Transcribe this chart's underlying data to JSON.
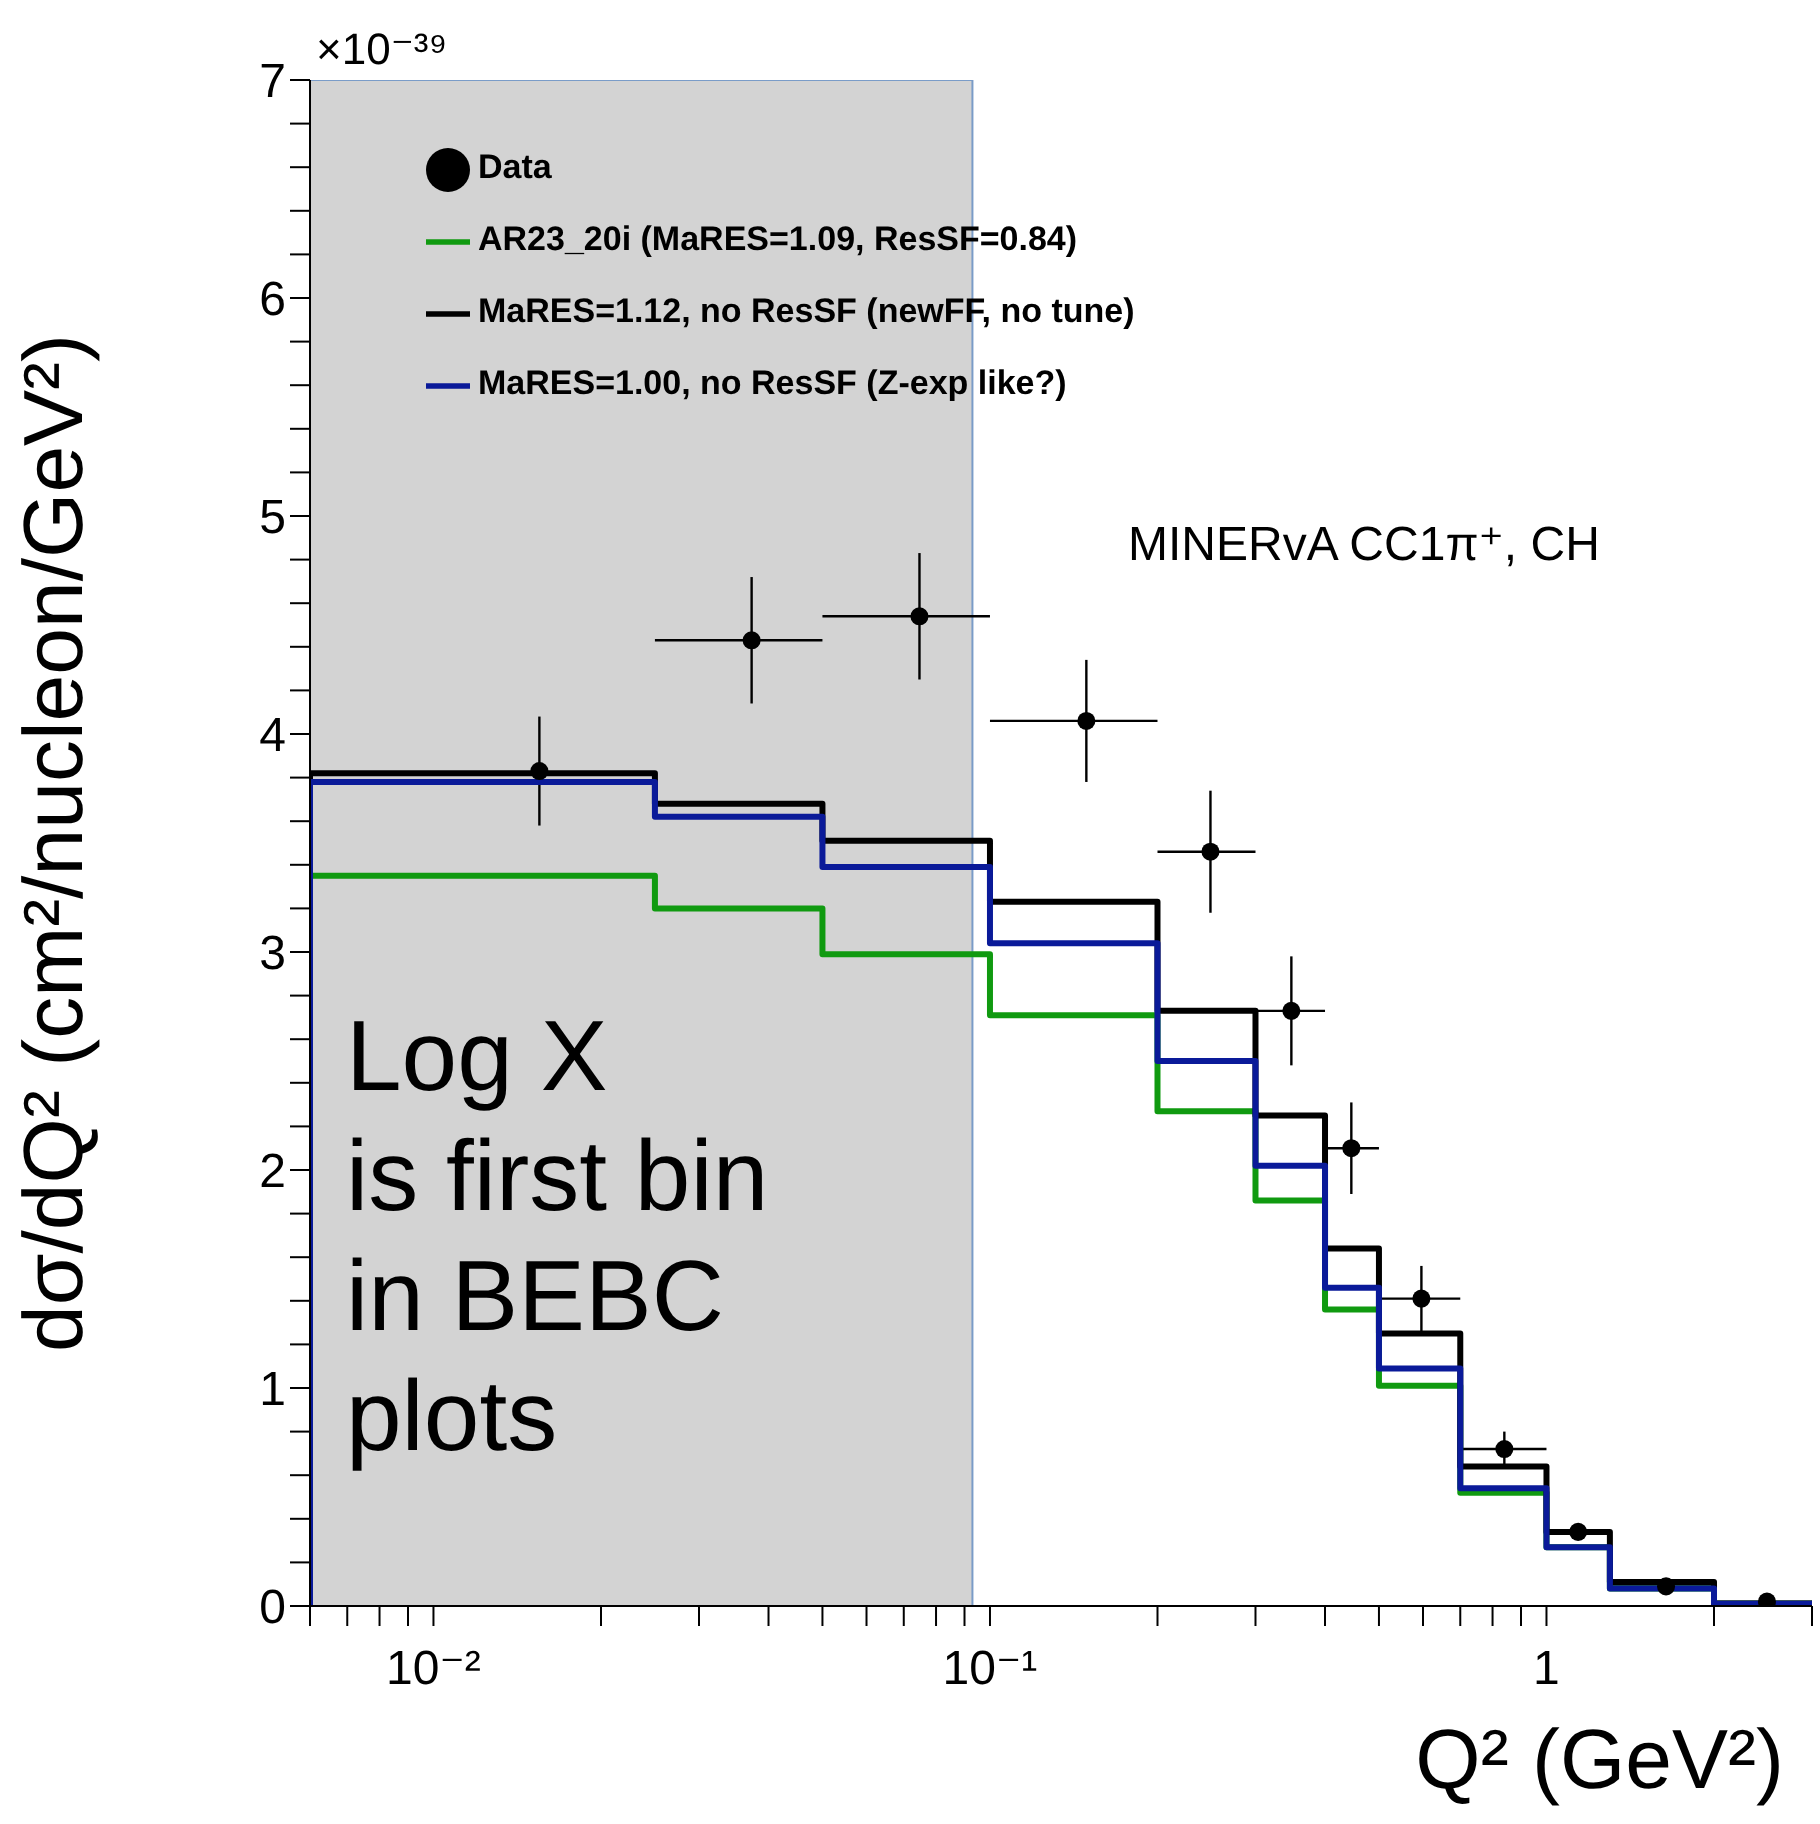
{
  "chart_data": {
    "type": "histogram",
    "xlabel": "Q² (GeV²)",
    "ylabel": "dσ/dQ² (cm²/nucleon/GeV²)",
    "annotations": [
      "×10⁻³⁹",
      "MINERvA CC1π⁺, CH"
    ],
    "bins": [
      0.006,
      0.025,
      0.05,
      0.1,
      0.2,
      0.3,
      0.4,
      0.5,
      0.7,
      1.0,
      1.3,
      2.0,
      3.0
    ],
    "series": [
      {
        "type": "scatter",
        "name": "Data",
        "color": "#000000",
        "x": [
          0.0155,
          0.0373,
          0.0747,
          0.149,
          0.249,
          0.348,
          0.446,
          0.596,
          0.84,
          1.14,
          1.64,
          2.49
        ],
        "values": [
          3.83,
          4.43,
          4.54,
          4.06,
          3.46,
          2.73,
          2.1,
          1.41,
          0.72,
          0.34,
          0.09,
          0.02
        ],
        "errors": [
          0.25,
          0.29,
          0.29,
          0.28,
          0.28,
          0.25,
          0.21,
          0.15,
          0.08,
          0.03,
          null,
          null
        ],
        "xerrors": [
          null,
          [
            0.025,
            0.05
          ],
          [
            0.05,
            0.1
          ],
          [
            0.1,
            0.2
          ],
          [
            0.2,
            0.3
          ],
          [
            0.3,
            0.4
          ],
          [
            0.4,
            0.5
          ],
          [
            0.5,
            0.7
          ],
          [
            0.7,
            1.0
          ],
          [
            1.0,
            1.3
          ],
          [
            1.3,
            2.0
          ],
          [
            2.0,
            3.0
          ]
        ]
      },
      {
        "name": "AR23_20i (MaRES=1.09, ResSF=0.84)",
        "color": "#109a10",
        "values": [
          3.35,
          3.2,
          2.99,
          2.71,
          2.27,
          1.86,
          1.36,
          1.01,
          0.52,
          0.27,
          0.08,
          0.01
        ]
      },
      {
        "name": "MaRES=1.12, no ResSF (newFF, no tune)",
        "color": "#000000",
        "values": [
          3.82,
          3.68,
          3.51,
          3.23,
          2.73,
          2.25,
          1.64,
          1.25,
          0.64,
          0.34,
          0.11,
          0.01
        ]
      },
      {
        "name": "MaRES=1.00, no ResSF (Z-exp like?)",
        "color": "#0a1a99",
        "values": [
          3.78,
          3.62,
          3.39,
          3.04,
          2.5,
          2.02,
          1.46,
          1.09,
          0.54,
          0.27,
          0.08,
          0.01
        ]
      }
    ],
    "log": "x",
    "xlim": [
      0.006,
      3
    ],
    "xticks": [
      {
        "value": 0.006,
        "label": null
      },
      {
        "value": 0.007,
        "label": null
      },
      {
        "value": 0.008,
        "label": null
      },
      {
        "value": 0.009,
        "label": null
      },
      {
        "value": 0.01,
        "label": "10⁻²"
      },
      {
        "value": 0.02,
        "label": null
      },
      {
        "value": 0.03,
        "label": null
      },
      {
        "value": 0.04,
        "label": null
      },
      {
        "value": 0.05,
        "label": null
      },
      {
        "value": 0.06,
        "label": null
      },
      {
        "value": 0.07,
        "label": null
      },
      {
        "value": 0.08,
        "label": null
      },
      {
        "value": 0.09,
        "label": null
      },
      {
        "value": 0.1,
        "label": "10⁻¹"
      },
      {
        "value": 0.2,
        "label": null
      },
      {
        "value": 0.3,
        "label": null
      },
      {
        "value": 0.4,
        "label": null
      },
      {
        "value": 0.5,
        "label": null
      },
      {
        "value": 0.6,
        "label": null
      },
      {
        "value": 0.7,
        "label": null
      },
      {
        "value": 0.8,
        "label": null
      },
      {
        "value": 0.9,
        "label": null
      },
      1,
      {
        "value": 2,
        "label": null
      },
      {
        "value": 3,
        "label": null
      }
    ],
    "ylim": [
      0,
      7
    ],
    "yticks": [
      0,
      {
        "value": 0.2,
        "label": null
      },
      {
        "value": 0.4,
        "label": null
      },
      {
        "value": 0.6,
        "label": null
      },
      {
        "value": 0.8,
        "label": null
      },
      1,
      {
        "value": 1.2,
        "label": null
      },
      {
        "value": 1.4,
        "label": null
      },
      {
        "value": 1.6,
        "label": null
      },
      {
        "value": 1.8,
        "label": null
      },
      2,
      {
        "value": 2.2,
        "label": null
      },
      {
        "value": 2.4,
        "label": null
      },
      {
        "value": 2.6,
        "label": null
      },
      {
        "value": 2.8,
        "label": null
      },
      3,
      {
        "value": 3.2,
        "label": null
      },
      {
        "value": 3.4,
        "label": null
      },
      {
        "value": 3.6,
        "label": null
      },
      {
        "value": 3.8,
        "label": null
      },
      4,
      {
        "value": 4.2,
        "label": null
      },
      {
        "value": 4.4,
        "label": null
      },
      {
        "value": 4.6,
        "label": null
      },
      {
        "value": 4.8,
        "label": null
      },
      5,
      {
        "value": 5.2,
        "label": null
      },
      {
        "value": 5.4,
        "label": null
      },
      {
        "value": 5.6,
        "label": null
      },
      {
        "value": 5.8,
        "label": null
      },
      6,
      {
        "value": 6.2,
        "label": null
      },
      {
        "value": 6.4,
        "label": null
      },
      {
        "value": 6.6,
        "label": null
      },
      {
        "value": 6.8,
        "label": null
      },
      7
    ],
    "bands": [
      {
        "axis": "x",
        "from": 0.006,
        "to": 0.093,
        "label": "Log X\nis first bin\nin BEBC\nplots",
        "color": "#d3d3d3"
      }
    ],
    "legend": "top left",
    "marker": "circle"
  }
}
